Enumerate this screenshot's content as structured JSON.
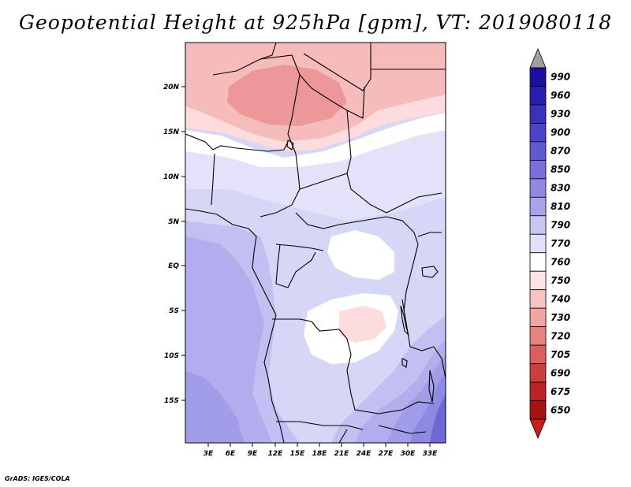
{
  "title": "Geopotential Height at 925hPa [gpm], VT: 2019080118",
  "credit": "GrADS: IGES/COLA",
  "y_axis_labels": [
    "20N",
    "15N",
    "10N",
    "5N",
    "EQ",
    "5S",
    "10S",
    "15S"
  ],
  "x_axis_labels": [
    "3E",
    "6E",
    "9E",
    "12E",
    "15E",
    "18E",
    "21E",
    "24E",
    "27E",
    "30E",
    "33E"
  ],
  "colorbar": {
    "levels": [
      "990",
      "960",
      "930",
      "900",
      "870",
      "850",
      "830",
      "810",
      "790",
      "770",
      "760",
      "750",
      "740",
      "730",
      "720",
      "705",
      "690",
      "675",
      "650"
    ],
    "colors": [
      "#1a0f9e",
      "#261fae",
      "#3a31bd",
      "#4b44c8",
      "#5f59d2",
      "#7770db",
      "#8e89e3",
      "#a8a4ec",
      "#c8c6f3",
      "#e1e0fa",
      "#ffffff",
      "#fde3e3",
      "#f8c2c2",
      "#f2a3a3",
      "#e88282",
      "#dc5f5f",
      "#cd3e3e",
      "#bb2424",
      "#a51212"
    ],
    "overflow_color": "#a0a0a0",
    "underflow_color": "#c81e1e"
  },
  "fields": {
    "background": "#d6d6f6",
    "palette": {
      "red2": "#ec9898",
      "red1": "#f6bcbc",
      "pink": "#fcdcdc",
      "white": "#ffffff",
      "lav1": "#e3e2fa",
      "lav2": "#d4d2f6",
      "blue1": "#c2c0f2",
      "blue2": "#b2aeee",
      "blue3": "#a19de9",
      "blue4": "#8e89e3",
      "blue5": "#6e68d6"
    }
  }
}
